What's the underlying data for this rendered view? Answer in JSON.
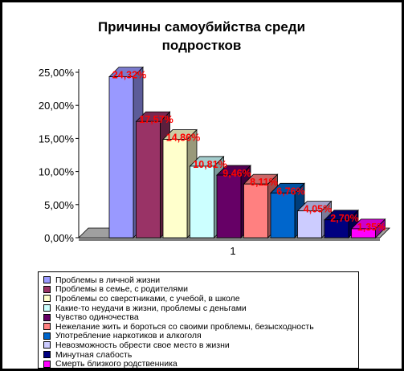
{
  "chart_data": {
    "type": "bar",
    "title": "Причины самоубийства среди подростков",
    "title_lines": [
      "Причины самоубийства среди",
      "подростков"
    ],
    "categories": [
      "1"
    ],
    "ylim": [
      0,
      25
    ],
    "yticks": [
      "0,00%",
      "5,00%",
      "10,00%",
      "15,00%",
      "20,00%",
      "25,00%"
    ],
    "grid": false,
    "legend_position": "bottom",
    "series": [
      {
        "name": "Проблемы в личной жизни",
        "value": 24.32,
        "label": "24,32%",
        "color": "#9999ff"
      },
      {
        "name": "Проблемы в семье, с родителями",
        "value": 17.57,
        "label": "17,57%",
        "color": "#993366"
      },
      {
        "name": "Проблемы со сверстниками, с учебой, в школе",
        "value": 14.86,
        "label": "14,86%",
        "color": "#ffffcc"
      },
      {
        "name": "Какие-то неудачи в жизни, проблемы с деньгами",
        "value": 10.81,
        "label": "10,81%",
        "color": "#ccffff"
      },
      {
        "name": "Чувство одиночества",
        "value": 9.46,
        "label": "9,46%",
        "color": "#660066"
      },
      {
        "name": "Нежелание жить и бороться со своими проблемы, безысходность",
        "value": 8.11,
        "label": "8,11%",
        "color": "#ff8080"
      },
      {
        "name": "Употребление наркотиков и алкоголя",
        "value": 6.76,
        "label": "6,76%",
        "color": "#0066cc"
      },
      {
        "name": "Невозможность обрести свое место в жизни",
        "value": 4.05,
        "label": "4,05%",
        "color": "#ccccff"
      },
      {
        "name": "Минутная слабость",
        "value": 2.7,
        "label": "2,70%",
        "color": "#000080"
      },
      {
        "name": "Смерть близкого родственника",
        "value": 1.35,
        "label": "1,35%",
        "color": "#ff00ff"
      }
    ],
    "label_color": "#ff0000"
  }
}
